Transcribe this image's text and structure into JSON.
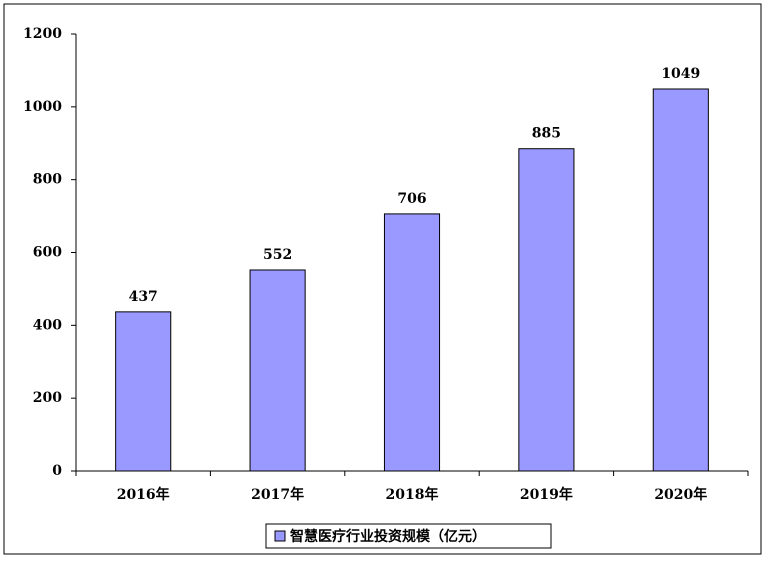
{
  "chart_data": {
    "type": "bar",
    "categories": [
      "2016年",
      "2017年",
      "2018年",
      "2019年",
      "2020年"
    ],
    "series": [
      {
        "name": "智慧医疗行业投资规模（亿元）",
        "color": "#9999ff",
        "values": [
          437,
          552,
          706,
          885,
          1049
        ]
      }
    ],
    "ylim": [
      0,
      1200
    ],
    "yticks": [
      0,
      200,
      400,
      600,
      800,
      1000,
      1200
    ],
    "grid": false,
    "legend": "bottom"
  }
}
